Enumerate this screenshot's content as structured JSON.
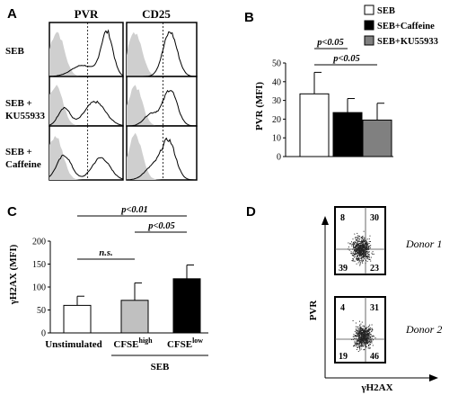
{
  "panels": {
    "a": "A",
    "b": "B",
    "c": "C",
    "d": "D"
  },
  "panel_a": {
    "column_headers": [
      "PVR",
      "CD25"
    ],
    "row_labels": [
      [
        "SEB"
      ],
      [
        "SEB +",
        "KU55933"
      ],
      [
        "SEB +",
        "Caffeine"
      ]
    ]
  },
  "panel_d": {
    "y_label": "PVR",
    "x_label": "γH2AX",
    "donors": [
      {
        "name": "Donor 1",
        "quadrants": {
          "ul": "8",
          "ur": "30",
          "ll": "39",
          "lr": "23"
        }
      },
      {
        "name": "Donor 2",
        "quadrants": {
          "ul": "4",
          "ur": "31",
          "ll": "19",
          "lr": "46"
        }
      }
    ]
  },
  "chart_data": [
    {
      "type": "bar",
      "panel": "B",
      "ylabel": "PVR (MFI)",
      "ylim": [
        0,
        50
      ],
      "yticks": [
        "0",
        "10",
        "20",
        "30",
        "40",
        "50"
      ],
      "categories": [
        "SEB",
        "SEB+Caffeine",
        "SEB+KU55933"
      ],
      "values": [
        33.5,
        23.5,
        19.5
      ],
      "errors": [
        11.5,
        7.5,
        9.0
      ],
      "colors": [
        "#ffffff",
        "#000000",
        "#808080"
      ],
      "legend": [
        "SEB",
        "SEB+Caffeine",
        "SEB+KU55933"
      ],
      "legend_position": "top-right",
      "annotations": [
        "p<0.05",
        "p<0.05"
      ]
    },
    {
      "type": "bar",
      "panel": "C",
      "ylabel": "γH2AX (MFI)",
      "ylim": [
        0,
        200
      ],
      "yticks": [
        "0",
        "50",
        "100",
        "150",
        "200"
      ],
      "categories": [
        "Unstimulated",
        "CFSE",
        "CFSE"
      ],
      "category_superscripts": [
        "",
        "high",
        "low"
      ],
      "group_label": "SEB",
      "values": [
        60,
        71,
        118
      ],
      "errors": [
        20,
        38,
        30
      ],
      "colors": [
        "#ffffff",
        "#c0c0c0",
        "#000000"
      ],
      "annotations": [
        "p<0.01",
        "n.s.",
        "p<0.05"
      ]
    }
  ]
}
